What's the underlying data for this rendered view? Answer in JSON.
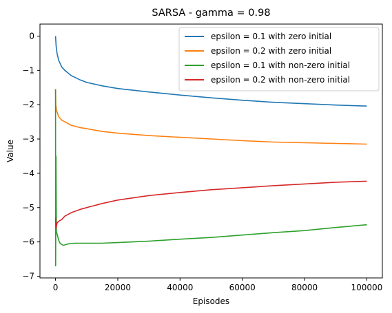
{
  "chart_data": {
    "type": "line",
    "title": "SARSA - gamma = 0.98",
    "xlabel": "Episodes",
    "ylabel": "Value",
    "xlim": [
      -5000,
      105000
    ],
    "ylim": [
      -7.05,
      0.35
    ],
    "xticks": [
      0,
      20000,
      40000,
      60000,
      80000,
      100000
    ],
    "xtick_labels": [
      "0",
      "20000",
      "40000",
      "60000",
      "80000",
      "100000"
    ],
    "yticks": [
      0,
      -1,
      -2,
      -3,
      -4,
      -5,
      -6,
      -7
    ],
    "ytick_labels": [
      "0",
      "−1",
      "−2",
      "−3",
      "−4",
      "−5",
      "−6",
      "−7"
    ],
    "grid": false,
    "legend": "top-right",
    "series": [
      {
        "name": "epsilon = 0.1 with zero initial",
        "color": "#1f77b4",
        "points": [
          [
            0,
            0.0
          ],
          [
            200,
            -0.3
          ],
          [
            500,
            -0.5
          ],
          [
            1000,
            -0.7
          ],
          [
            2000,
            -0.9
          ],
          [
            3000,
            -1.0
          ],
          [
            5000,
            -1.15
          ],
          [
            8000,
            -1.28
          ],
          [
            10000,
            -1.35
          ],
          [
            15000,
            -1.45
          ],
          [
            20000,
            -1.53
          ],
          [
            30000,
            -1.63
          ],
          [
            40000,
            -1.72
          ],
          [
            50000,
            -1.8
          ],
          [
            60000,
            -1.87
          ],
          [
            70000,
            -1.93
          ],
          [
            80000,
            -1.97
          ],
          [
            90000,
            -2.01
          ],
          [
            100000,
            -2.04
          ]
        ]
      },
      {
        "name": "epsilon = 0.2 with zero initial",
        "color": "#ff7f0e",
        "points": [
          [
            0,
            -1.55
          ],
          [
            100,
            -2.0
          ],
          [
            300,
            -2.15
          ],
          [
            1000,
            -2.35
          ],
          [
            2000,
            -2.45
          ],
          [
            3000,
            -2.5
          ],
          [
            5000,
            -2.6
          ],
          [
            8000,
            -2.67
          ],
          [
            10000,
            -2.7
          ],
          [
            15000,
            -2.78
          ],
          [
            20000,
            -2.83
          ],
          [
            30000,
            -2.9
          ],
          [
            40000,
            -2.95
          ],
          [
            50000,
            -3.0
          ],
          [
            60000,
            -3.05
          ],
          [
            70000,
            -3.09
          ],
          [
            80000,
            -3.11
          ],
          [
            90000,
            -3.13
          ],
          [
            100000,
            -3.15
          ]
        ]
      },
      {
        "name": "epsilon = 0.1 with non-zero initial",
        "color": "#2ca02c",
        "points": [
          [
            0,
            -1.55
          ],
          [
            50,
            -6.7
          ],
          [
            150,
            -3.5
          ],
          [
            300,
            -5.7
          ],
          [
            600,
            -5.8
          ],
          [
            1000,
            -5.95
          ],
          [
            1500,
            -6.05
          ],
          [
            2500,
            -6.1
          ],
          [
            4000,
            -6.06
          ],
          [
            6000,
            -6.04
          ],
          [
            10000,
            -6.04
          ],
          [
            15000,
            -6.04
          ],
          [
            20000,
            -6.02
          ],
          [
            30000,
            -5.98
          ],
          [
            40000,
            -5.92
          ],
          [
            50000,
            -5.87
          ],
          [
            60000,
            -5.8
          ],
          [
            70000,
            -5.73
          ],
          [
            80000,
            -5.67
          ],
          [
            90000,
            -5.58
          ],
          [
            100000,
            -5.5
          ]
        ]
      },
      {
        "name": "epsilon = 0.2 with non-zero initial",
        "color": "#d62728",
        "points": [
          [
            0,
            -5.3
          ],
          [
            200,
            -5.6
          ],
          [
            500,
            -5.45
          ],
          [
            1000,
            -5.4
          ],
          [
            2000,
            -5.35
          ],
          [
            3000,
            -5.25
          ],
          [
            5000,
            -5.15
          ],
          [
            8000,
            -5.05
          ],
          [
            10000,
            -5.0
          ],
          [
            15000,
            -4.88
          ],
          [
            20000,
            -4.78
          ],
          [
            30000,
            -4.65
          ],
          [
            40000,
            -4.56
          ],
          [
            50000,
            -4.48
          ],
          [
            60000,
            -4.42
          ],
          [
            70000,
            -4.36
          ],
          [
            80000,
            -4.31
          ],
          [
            90000,
            -4.26
          ],
          [
            100000,
            -4.23
          ]
        ]
      }
    ]
  }
}
